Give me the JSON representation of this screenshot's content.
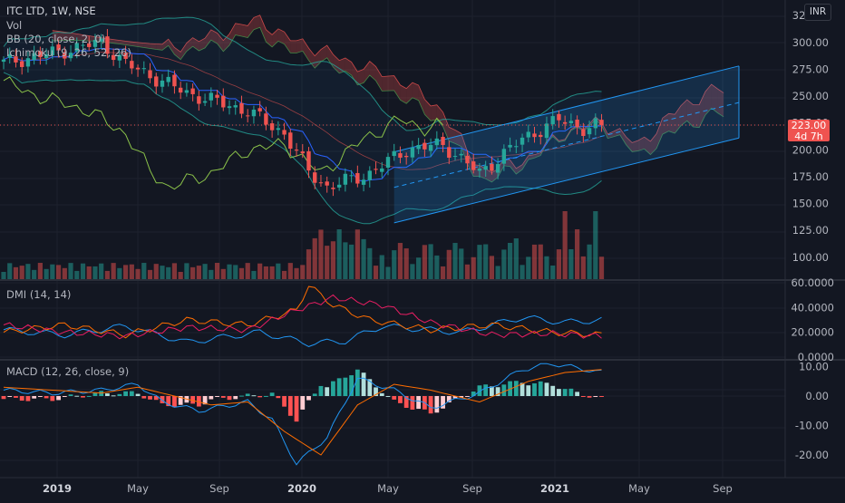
{
  "legend": {
    "symbol": "ITC LTD, 1W, NSE",
    "vol": "Vol",
    "bb": "BB (20, close, 2, 0)",
    "ichimoku": "Ichimoku (9, 26, 52, 26)",
    "dmi": "DMI (14, 14)",
    "macd": "MACD (12, 26, close, 9)"
  },
  "currency": "INR",
  "last_price": {
    "value": "223.00",
    "countdown": "4d 7h"
  },
  "colors": {
    "up": "#26a69a",
    "down": "#ef5350",
    "bb": "#26a69a",
    "lead_a": "#4caf50",
    "lead_b": "#ef5350",
    "lagging": "#8bc34a",
    "conversion": "#2962ff",
    "base": "#b71c1c",
    "channel": "#2196f3",
    "dmi_plus": "#2196f3",
    "dmi_minus": "#ff6d00",
    "adx": "#e91e63",
    "macd": "#2196f3",
    "signal": "#ff6d00"
  },
  "chart_data": [
    {
      "type": "candlestick",
      "title": "ITC LTD, 1W, NSE",
      "x_tick_labels": [
        "2019",
        "May",
        "Sep",
        "2020",
        "May",
        "Sep",
        "2021",
        "May",
        "Sep"
      ],
      "y_tick_labels": [
        "325.00",
        "300.00",
        "275.00",
        "250.00",
        "225.00",
        "200.00",
        "175.00",
        "150.00",
        "125.00",
        "100.00"
      ],
      "ylim": [
        88,
        330
      ],
      "price_waypoints": [
        [
          0,
          281
        ],
        [
          8,
          290
        ],
        [
          16,
          300
        ],
        [
          20,
          280
        ],
        [
          30,
          253
        ],
        [
          40,
          236
        ],
        [
          46,
          215
        ],
        [
          50,
          180
        ],
        [
          53,
          165
        ],
        [
          60,
          178
        ],
        [
          66,
          200
        ],
        [
          72,
          205
        ],
        [
          78,
          178
        ],
        [
          85,
          210
        ],
        [
          91,
          228
        ],
        [
          95,
          220
        ],
        [
          98,
          223
        ]
      ],
      "last_value": 223.0
    },
    {
      "type": "bar",
      "title": "Vol",
      "note": "weekly volume histogram, colored by candle direction"
    },
    {
      "type": "line",
      "title": "DMI (14, 14)",
      "y_tick_labels": [
        "60.0000",
        "40.0000",
        "20.0000",
        "0.0000"
      ],
      "ylim": [
        0,
        60
      ],
      "series": [
        {
          "name": "+DI",
          "waypoints": [
            [
              0,
              22
            ],
            [
              10,
              18
            ],
            [
              20,
              25
            ],
            [
              30,
              12
            ],
            [
              42,
              20
            ],
            [
              50,
              11
            ],
            [
              56,
              13
            ],
            [
              62,
              25
            ],
            [
              75,
              20
            ],
            [
              85,
              32
            ],
            [
              92,
              28
            ],
            [
              98,
              30
            ]
          ]
        },
        {
          "name": "-DI",
          "waypoints": [
            [
              0,
              20
            ],
            [
              10,
              26
            ],
            [
              20,
              18
            ],
            [
              30,
              30
            ],
            [
              40,
              26
            ],
            [
              48,
              38
            ],
            [
              50,
              58
            ],
            [
              54,
              42
            ],
            [
              60,
              30
            ],
            [
              70,
              22
            ],
            [
              80,
              26
            ],
            [
              90,
              20
            ],
            [
              98,
              18
            ]
          ]
        },
        {
          "name": "ADX",
          "waypoints": [
            [
              0,
              26
            ],
            [
              10,
              20
            ],
            [
              20,
              17
            ],
            [
              30,
              24
            ],
            [
              40,
              22
            ],
            [
              48,
              38
            ],
            [
              54,
              48
            ],
            [
              62,
              42
            ],
            [
              70,
              28
            ],
            [
              80,
              18
            ],
            [
              90,
              19
            ],
            [
              98,
              17
            ]
          ]
        }
      ]
    },
    {
      "type": "line",
      "title": "MACD (12, 26, close, 9)",
      "y_tick_labels": [
        "10.00",
        "0.00",
        "-10.00",
        "-20.00"
      ],
      "ylim": [
        -25,
        13
      ],
      "series": [
        {
          "name": "MACD",
          "waypoints": [
            [
              0,
              2
            ],
            [
              8,
              1
            ],
            [
              16,
              2
            ],
            [
              22,
              4
            ],
            [
              26,
              -2
            ],
            [
              32,
              -5
            ],
            [
              40,
              -2
            ],
            [
              44,
              -8
            ],
            [
              48,
              -23
            ],
            [
              53,
              -14
            ],
            [
              58,
              6
            ],
            [
              64,
              2
            ],
            [
              70,
              -4
            ],
            [
              78,
              1
            ],
            [
              85,
              9
            ],
            [
              90,
              11
            ],
            [
              98,
              8
            ]
          ]
        },
        {
          "name": "Signal",
          "waypoints": [
            [
              0,
              3
            ],
            [
              8,
              2
            ],
            [
              16,
              1
            ],
            [
              22,
              3
            ],
            [
              28,
              0
            ],
            [
              34,
              -3
            ],
            [
              40,
              -2
            ],
            [
              46,
              -12
            ],
            [
              52,
              -20
            ],
            [
              58,
              -3
            ],
            [
              64,
              4
            ],
            [
              70,
              2
            ],
            [
              78,
              -2
            ],
            [
              86,
              5
            ],
            [
              92,
              8
            ],
            [
              98,
              9
            ]
          ]
        }
      ]
    }
  ]
}
